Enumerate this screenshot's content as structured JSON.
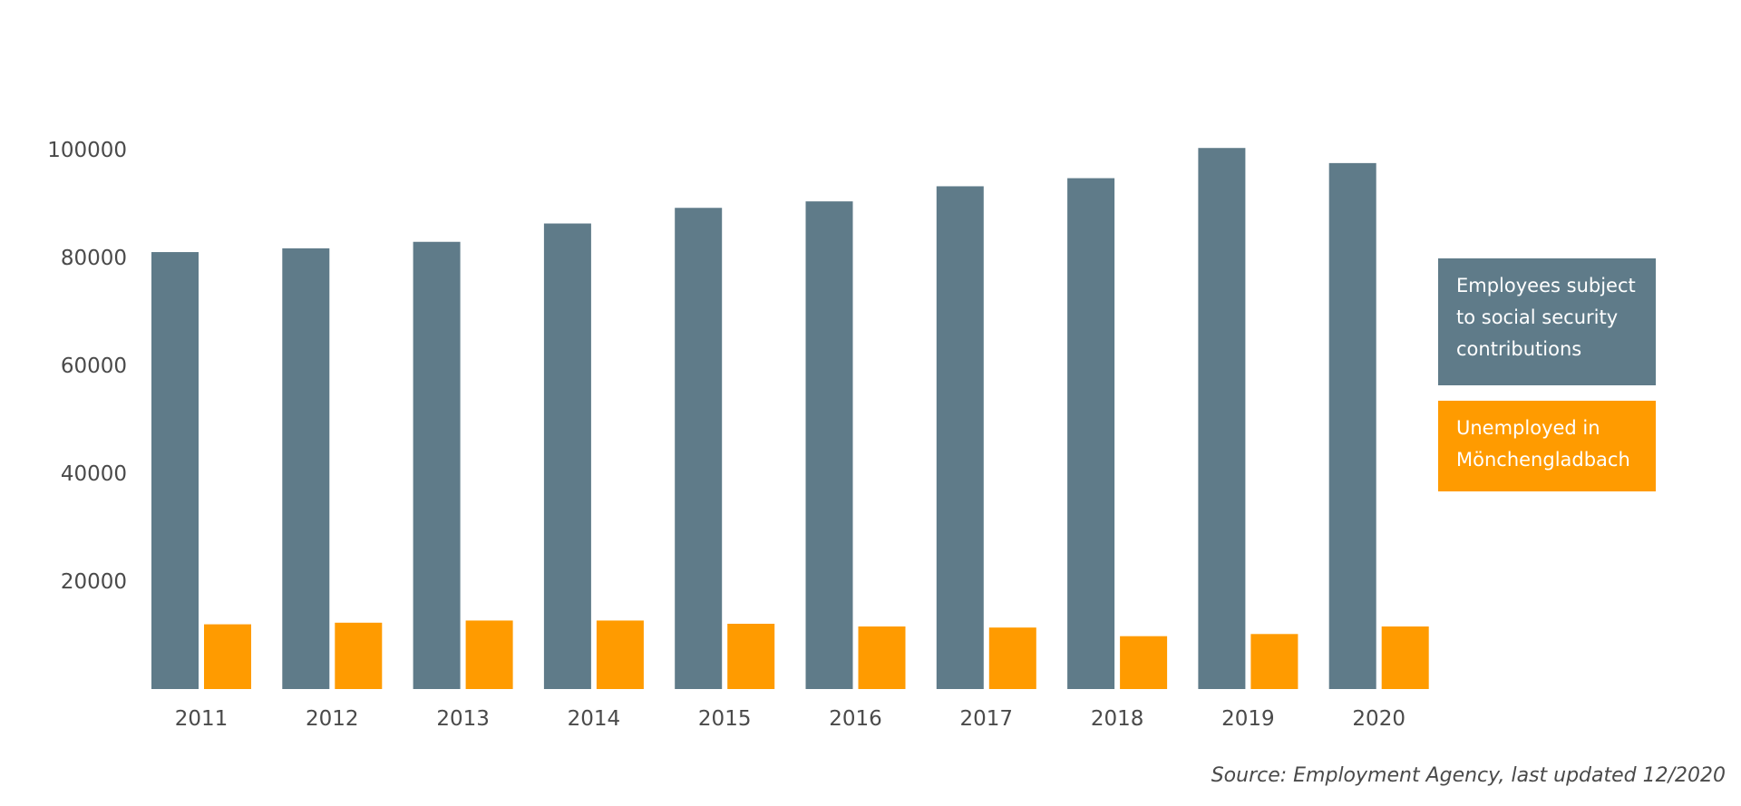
{
  "chart_data": {
    "type": "bar",
    "categories": [
      "2011",
      "2012",
      "2013",
      "2014",
      "2015",
      "2016",
      "2017",
      "2018",
      "2019",
      "2020"
    ],
    "series": [
      {
        "name": "Employees subject to social security contributions",
        "color": "#5f7b89",
        "values": [
          81000,
          81700,
          82900,
          86300,
          89200,
          90400,
          93200,
          94700,
          100300,
          97500
        ]
      },
      {
        "name": "Unemployed in Mönchengladbach",
        "color": "#ff9b00",
        "values": [
          12000,
          12300,
          12700,
          12700,
          12100,
          11600,
          11400,
          9800,
          10200,
          11600
        ]
      }
    ],
    "yticks": [
      20000,
      40000,
      60000,
      80000,
      100000
    ],
    "ylim": [
      0,
      101000
    ],
    "grid": false,
    "legend_position": "right",
    "title": "",
    "xlabel": "",
    "ylabel": ""
  },
  "source": "Source: Employment Agency, last updated 12/2020"
}
